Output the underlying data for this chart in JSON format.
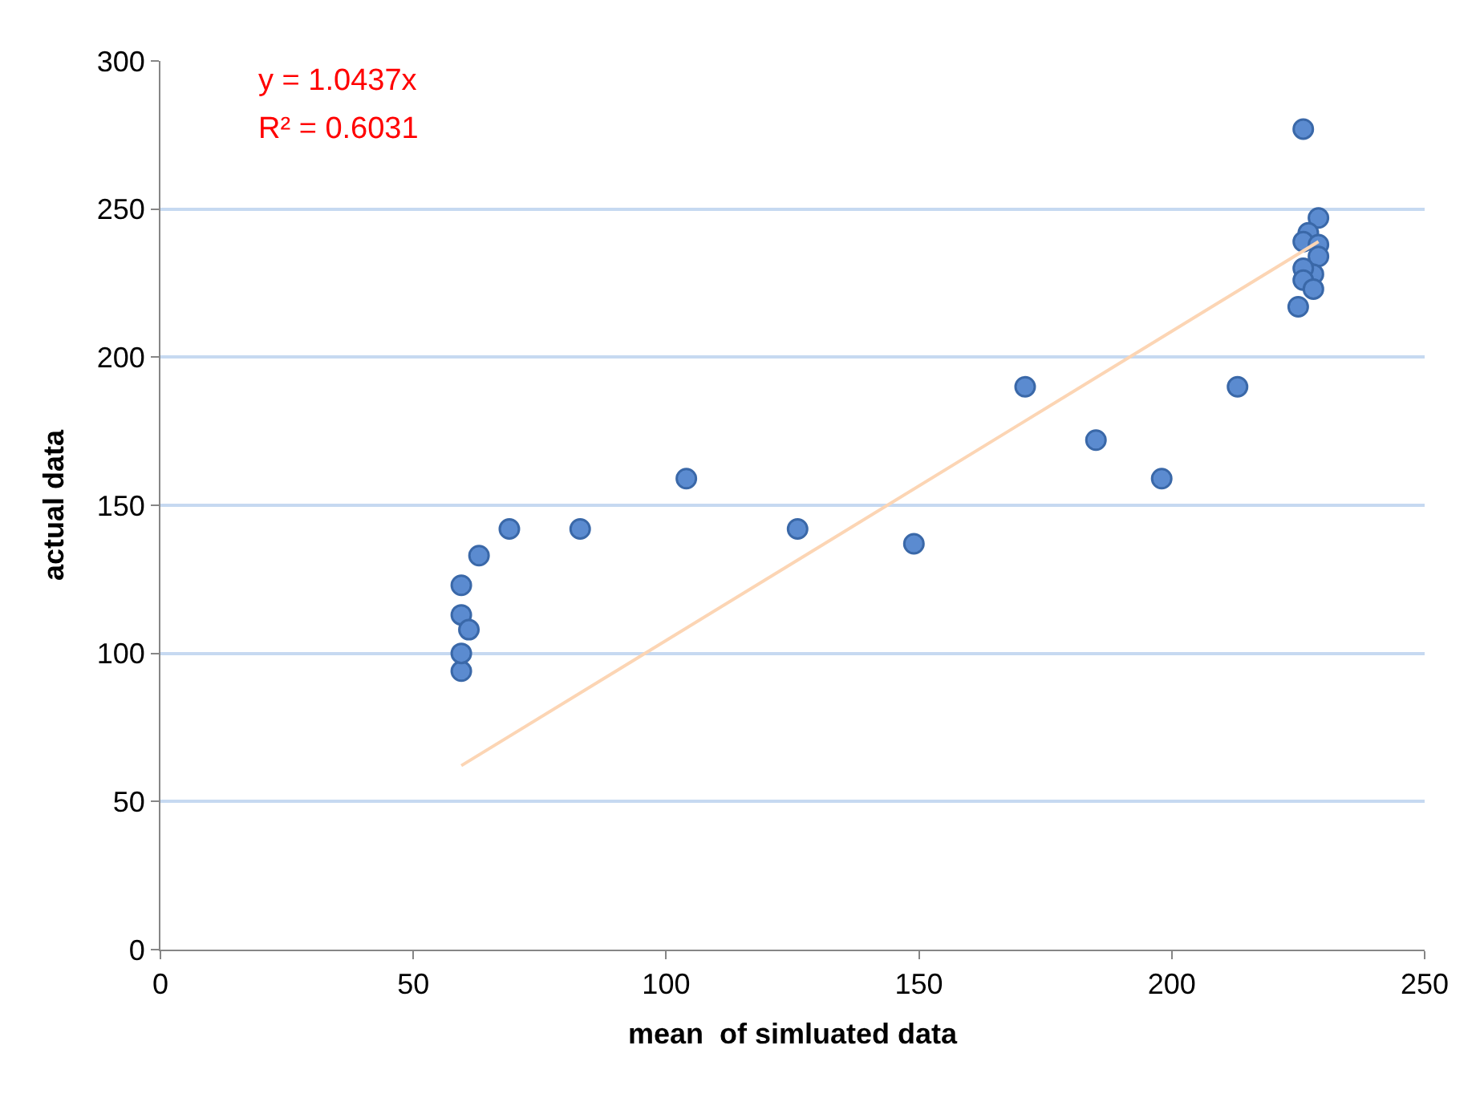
{
  "chart_data": {
    "type": "scatter",
    "xlabel": "mean  of simluated data",
    "ylabel": "actual data",
    "xlim": [
      0,
      250
    ],
    "xticks": [
      0,
      50,
      100,
      150,
      200,
      250
    ],
    "ylim": [
      0,
      300
    ],
    "yticks": [
      0,
      50,
      100,
      150,
      200,
      250,
      300
    ],
    "grid": "y",
    "marker": "circle",
    "annotations": [
      "y = 1.0437x",
      "R² = 0.6031"
    ],
    "series": [
      {
        "color": "#5b8bd0",
        "x": [
          59.5,
          59.5,
          59.5,
          61,
          59.5,
          63,
          69,
          83,
          104,
          126,
          149,
          171,
          185,
          198,
          213,
          226,
          229,
          227,
          226,
          229,
          229,
          228,
          226,
          226,
          228,
          225
        ],
        "values": [
          94,
          100,
          113,
          108,
          123,
          133,
          142,
          142,
          159,
          142,
          137,
          190,
          172,
          159,
          190,
          277,
          247,
          242,
          239,
          238,
          234,
          228,
          230,
          226,
          223,
          217
        ]
      },
      {
        "type": "line",
        "color": "#fcd5b4",
        "marker": "none",
        "x": [
          59.5,
          229
        ],
        "values": [
          62.1,
          239.0
        ]
      }
    ]
  }
}
